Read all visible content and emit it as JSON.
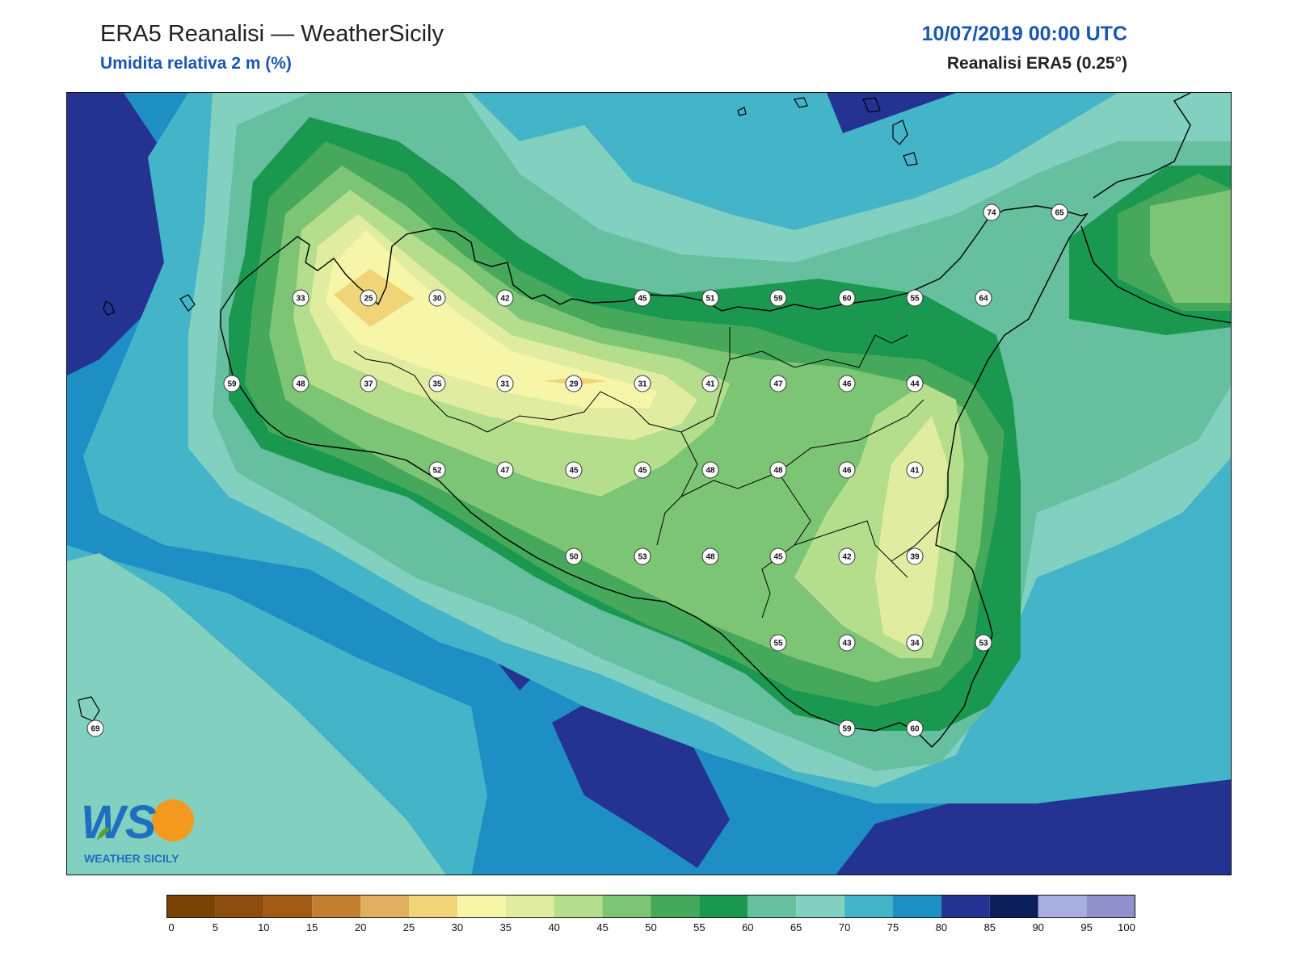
{
  "header": {
    "title": "ERA5 Reanalisi — WeatherSicily",
    "subtitle": "Umidita relativa 2 m (%)",
    "datetime": "10/07/2019 00:00 UTC",
    "source": "Reanalisi ERA5 (0.25°)"
  },
  "colors": {
    "accent_blue": "#1a56b4",
    "coast": "#000000",
    "sea_deep": "#243392",
    "sea": "#1f8fc4",
    "logo_blue": "#1f6fc0",
    "logo_orange": "#f39a1e",
    "logo_green": "#5aa02c"
  },
  "colorbar": {
    "ticks": [
      "0",
      "5",
      "10",
      "15",
      "20",
      "25",
      "30",
      "35",
      "40",
      "45",
      "50",
      "55",
      "60",
      "65",
      "70",
      "75",
      "80",
      "85",
      "90",
      "95",
      "100"
    ],
    "colors": [
      "#7a4306",
      "#8c4c0e",
      "#a05a14",
      "#c08030",
      "#e0b060",
      "#f0d478",
      "#f7f5a8",
      "#e0eda0",
      "#b4de8c",
      "#7cc574",
      "#46a85a",
      "#1a9850",
      "#66bf9e",
      "#82d0bf",
      "#44b4c8",
      "#1e8fc4",
      "#243392",
      "#0c1d5c",
      "#a8aee0",
      "#9090cc"
    ]
  },
  "stations": [
    {
      "v": "74"
    },
    {
      "v": "65"
    },
    {
      "v": "33"
    },
    {
      "v": "25"
    },
    {
      "v": "30"
    },
    {
      "v": "42"
    },
    {
      "v": "45"
    },
    {
      "v": "51"
    },
    {
      "v": "59"
    },
    {
      "v": "60"
    },
    {
      "v": "55"
    },
    {
      "v": "64"
    },
    {
      "v": "59"
    },
    {
      "v": "48"
    },
    {
      "v": "37"
    },
    {
      "v": "35"
    },
    {
      "v": "31"
    },
    {
      "v": "29"
    },
    {
      "v": "31"
    },
    {
      "v": "41"
    },
    {
      "v": "47"
    },
    {
      "v": "46"
    },
    {
      "v": "44"
    },
    {
      "v": "52"
    },
    {
      "v": "47"
    },
    {
      "v": "45"
    },
    {
      "v": "45"
    },
    {
      "v": "48"
    },
    {
      "v": "48"
    },
    {
      "v": "46"
    },
    {
      "v": "41"
    },
    {
      "v": "50"
    },
    {
      "v": "53"
    },
    {
      "v": "48"
    },
    {
      "v": "45"
    },
    {
      "v": "42"
    },
    {
      "v": "39"
    },
    {
      "v": "55"
    },
    {
      "v": "43"
    },
    {
      "v": "34"
    },
    {
      "v": "53"
    },
    {
      "v": "69"
    },
    {
      "v": "59"
    },
    {
      "v": "60"
    }
  ],
  "logo": {
    "letters": "WS",
    "text": "WEATHER SICILY"
  }
}
